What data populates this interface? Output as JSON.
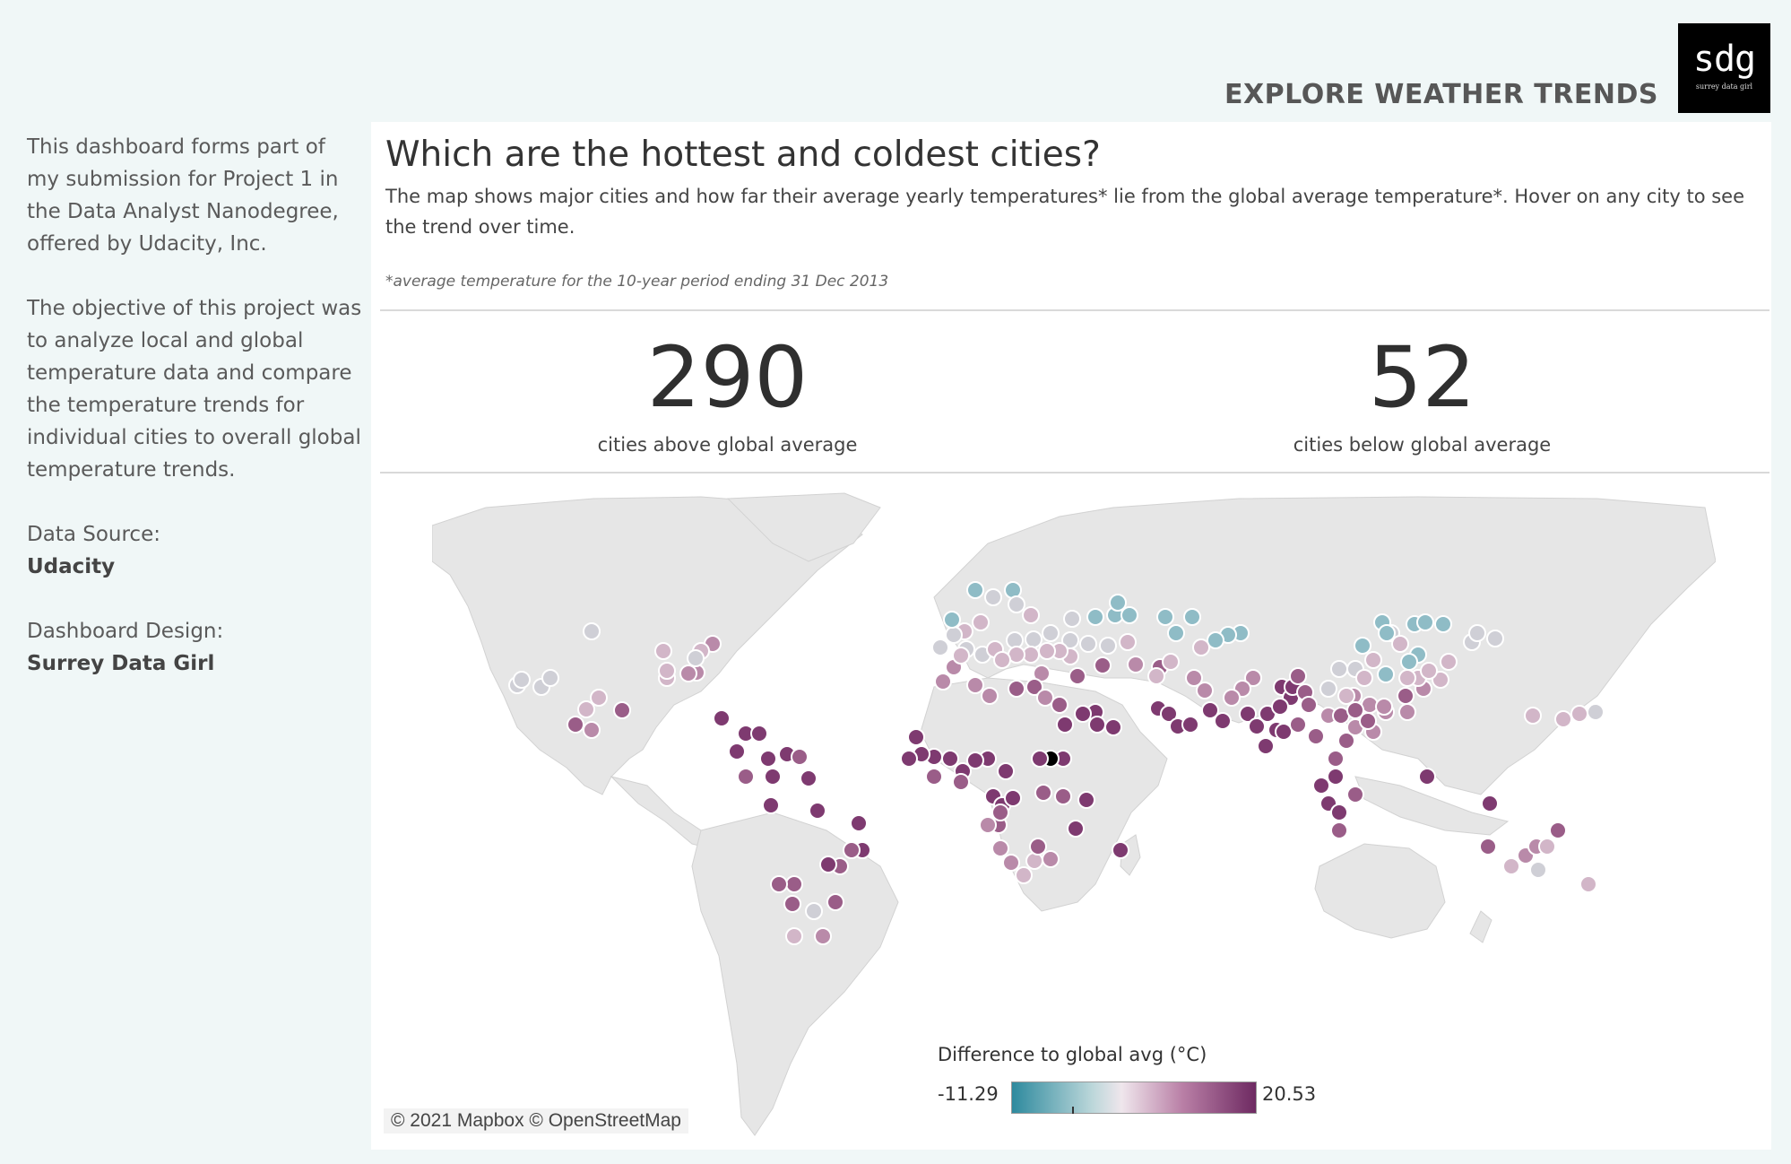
{
  "header": {
    "dashboard_title": "EXPLORE WEATHER TRENDS",
    "logo_text": "sdg",
    "logo_subtext": "surrey data girl"
  },
  "sidebar": {
    "intro": "This dashboard forms part of my submission for Project 1 in the Data Analyst Nanodegree, offered by Udacity, Inc.",
    "objective": "The objective of this project was to analyze local and global temperature data and compare the temperature trends for individual cities to overall global temperature trends.",
    "data_source_label": "Data Source:",
    "data_source_value": "Udacity",
    "design_label": "Dashboard Design:",
    "design_value": "Surrey Data Girl"
  },
  "main": {
    "title": "Which are the hottest and coldest cities?",
    "description": "The map shows major cities and how far their average yearly temperatures* lie from the global average temperature*. Hover on any city to see the trend over time.",
    "footnote": "*average temperature for the 10-year period ending 31 Dec 2013",
    "kpi_above": {
      "value": "290",
      "label": "cities above global average"
    },
    "kpi_below": {
      "value": "52",
      "label": "cities below global average"
    }
  },
  "legend": {
    "title": "Difference to global avg (°C)",
    "min": "-11.29",
    "max": "20.53"
  },
  "attribution": "© 2021 Mapbox © OpenStreetMap",
  "colors": {
    "cold": "#2e8a9e",
    "neutral": "#e8e0e4",
    "hot": "#6e2a62",
    "land": "#e6e6e6",
    "background": "#f0f7f7"
  }
}
